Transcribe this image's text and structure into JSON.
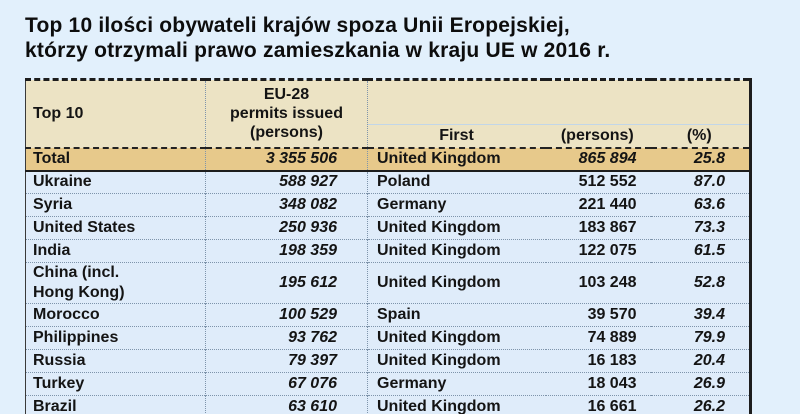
{
  "title": {
    "line1": "Top 10 ilości obywateli krajów spoza Unii Eropejskiej,",
    "line2": "którzy otrzymali prawo zamieszkania w kraju UE w 2016 r."
  },
  "colors": {
    "page_bg": "#e2f0fc",
    "header_bg": "#ece3c4",
    "total_row_bg": "#e7c98b",
    "data_row_bg": "#dfecfa",
    "text": "#141414",
    "border_dark": "#1d1d1d",
    "divider_dotted": "#7e94ab",
    "subheader_line": "#c2d6e8"
  },
  "chart_data": {
    "type": "table",
    "title": "Top 10 ilości obywateli krajów spoza Unii Eropejskiej, którzy otrzymali prawo zamieszkania w kraju UE w 2016 r.",
    "columns": [
      "Top 10",
      "EU-28 permits issued (persons)",
      "First",
      "(persons)",
      "(%)"
    ],
    "header": {
      "top10": "Top 10",
      "eu28_line1": "EU-28",
      "eu28_line2": "permits issued",
      "eu28_line3": "(persons)",
      "first": "First",
      "persons": "(persons)",
      "percent": "(%)"
    },
    "total": {
      "country": "Total",
      "eu28": "3 355 506",
      "first": "United Kingdom",
      "persons": "865 894",
      "percent": "25.8"
    },
    "rows": [
      {
        "country": "Ukraine",
        "eu28": "588 927",
        "first": "Poland",
        "persons": "512 552",
        "percent": "87.0"
      },
      {
        "country": "Syria",
        "eu28": "348 082",
        "first": "Germany",
        "persons": "221 440",
        "percent": "63.6"
      },
      {
        "country": "United States",
        "eu28": "250 936",
        "first": "United Kingdom",
        "persons": "183 867",
        "percent": "73.3"
      },
      {
        "country": "India",
        "eu28": "198 359",
        "first": "United Kingdom",
        "persons": "122 075",
        "percent": "61.5"
      },
      {
        "country": "China (incl.\nHong Kong)",
        "eu28": "195 612",
        "first": "United Kingdom",
        "persons": "103 248",
        "percent": "52.8"
      },
      {
        "country": "Morocco",
        "eu28": "100 529",
        "first": "Spain",
        "persons": "39 570",
        "percent": "39.4"
      },
      {
        "country": "Philippines",
        "eu28": "93 762",
        "first": "United Kingdom",
        "persons": "74 889",
        "percent": "79.9"
      },
      {
        "country": "Russia",
        "eu28": "79 397",
        "first": "United Kingdom",
        "persons": "16 183",
        "percent": "20.4"
      },
      {
        "country": "Turkey",
        "eu28": "67 076",
        "first": "Germany",
        "persons": "18 043",
        "percent": "26.9"
      },
      {
        "country": "Brazil",
        "eu28": "63 610",
        "first": "United Kingdom",
        "persons": "16 661",
        "percent": "26.2"
      }
    ]
  }
}
